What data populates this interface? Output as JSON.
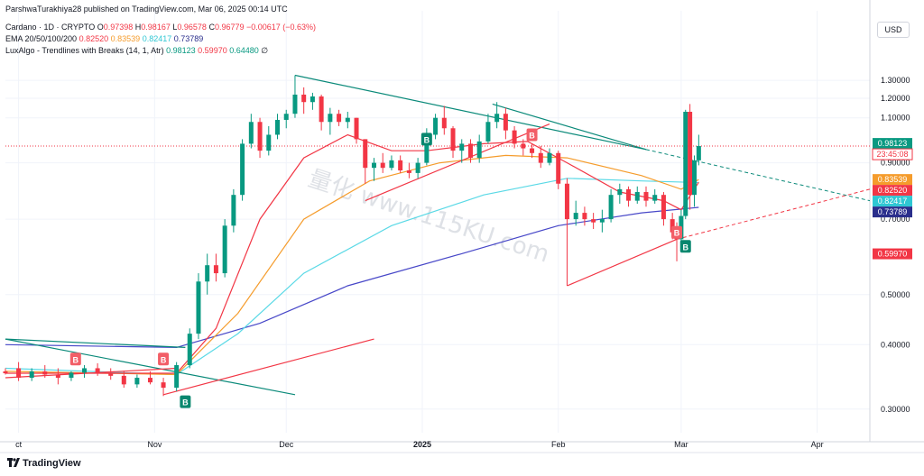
{
  "header": {
    "publish_line": "ParshwaTurakhiya28 published on TradingView.com, Mar 06, 2025 00:14 UTC",
    "symbol": "Cardano · 1D · CRYPTO",
    "o_label": "O",
    "o_val": "0.97398",
    "h_label": "H",
    "h_val": "0.98167",
    "l_label": "L",
    "l_val": "0.96578",
    "c_label": "C",
    "c_val": "0.96779",
    "change": "−0.00617 (−0.63%)",
    "ema_label": "EMA 20/50/100/200",
    "ema20": "0.82520",
    "ema50": "0.83539",
    "ema100": "0.82417",
    "ema200": "0.73789",
    "lux_label": "LuxAlgo - Trendlines with Breaks (14, 1, Atr)",
    "lux1": "0.98123",
    "lux2": "0.59970",
    "lux3": "0.64480",
    "lux_end": "∅"
  },
  "currency_button": "USD",
  "watermark": "量化  www.115KU.com",
  "branding": "TradingView",
  "colors": {
    "up": "#089981",
    "down": "#f23645",
    "ema20": "#f23645",
    "ema50": "#f59c2c",
    "ema100": "#5ad9e6",
    "ema200": "#4747c8",
    "trend_down": "#0b8a7a",
    "trend_up": "#f23645"
  },
  "chart_data": {
    "type": "candlestick",
    "symbol": "Cardano · 1D · CRYPTO",
    "y_ticks": [
      "1.30000",
      "1.20000",
      "1.10000",
      "0.90000",
      "0.70000",
      "0.50000",
      "0.40000",
      "0.30000"
    ],
    "y_tick_values": [
      1.3,
      1.2,
      1.1,
      0.9,
      0.7,
      0.5,
      0.4,
      0.3
    ],
    "y_scale": "log",
    "ylim": [
      0.27,
      1.45
    ],
    "x_ticks": [
      "ct",
      "Nov",
      "Dec",
      "2025",
      "Feb",
      "Mar",
      "Apr"
    ],
    "x_range": [
      "2024-09-28",
      "2025-04-13"
    ],
    "x_tick_dates": [
      "2024-10-01",
      "2024-11-01",
      "2024-12-01",
      "2025-01-01",
      "2025-02-01",
      "2025-03-01",
      "2025-04-01"
    ],
    "price_labels": [
      {
        "text": "0.98123",
        "value": 0.98123,
        "color": "#089981"
      },
      {
        "text": "23:45:08",
        "value": 0.935,
        "color": "#f23645",
        "style": "outline"
      },
      {
        "text": "0.83539",
        "value": 0.83539,
        "color": "#f59c2c"
      },
      {
        "text": "0.82520",
        "value": 0.8252,
        "color": "#f23645"
      },
      {
        "text": "0.82417",
        "value": 0.82417,
        "color": "#2fc7d3"
      },
      {
        "text": "0.73789",
        "value": 0.73789,
        "color": "#2a2e8c"
      },
      {
        "text": "0.59970",
        "value": 0.5997,
        "color": "#f23645"
      }
    ],
    "markers": [
      {
        "date": "2024-11-08",
        "price": 0.31,
        "label": "B",
        "type": "buy"
      },
      {
        "date": "2024-11-03",
        "price": 0.375,
        "label": "B",
        "type": "sell"
      },
      {
        "date": "2024-10-14",
        "price": 0.375,
        "label": "B",
        "type": "sell"
      },
      {
        "date": "2025-01-02",
        "price": 1.0,
        "label": "B",
        "type": "buy"
      },
      {
        "date": "2025-01-26",
        "price": 1.02,
        "label": "B",
        "type": "sell"
      },
      {
        "date": "2025-02-28",
        "price": 0.66,
        "label": "B",
        "type": "sell"
      },
      {
        "date": "2025-03-02",
        "price": 0.62,
        "label": "B",
        "type": "buy"
      }
    ],
    "candles": [
      {
        "d": "2024-09-28",
        "o": 0.355,
        "h": 0.36,
        "l": 0.35,
        "c": 0.352
      },
      {
        "d": "2024-10-01",
        "o": 0.36,
        "h": 0.37,
        "l": 0.34,
        "c": 0.345
      },
      {
        "d": "2024-10-04",
        "o": 0.345,
        "h": 0.36,
        "l": 0.34,
        "c": 0.355
      },
      {
        "d": "2024-10-07",
        "o": 0.355,
        "h": 0.365,
        "l": 0.345,
        "c": 0.35
      },
      {
        "d": "2024-10-10",
        "o": 0.35,
        "h": 0.36,
        "l": 0.335,
        "c": 0.345
      },
      {
        "d": "2024-10-13",
        "o": 0.345,
        "h": 0.355,
        "l": 0.34,
        "c": 0.353
      },
      {
        "d": "2024-10-16",
        "o": 0.353,
        "h": 0.365,
        "l": 0.345,
        "c": 0.36
      },
      {
        "d": "2024-10-19",
        "o": 0.36,
        "h": 0.368,
        "l": 0.348,
        "c": 0.352
      },
      {
        "d": "2024-10-22",
        "o": 0.352,
        "h": 0.36,
        "l": 0.342,
        "c": 0.348
      },
      {
        "d": "2024-10-25",
        "o": 0.348,
        "h": 0.356,
        "l": 0.33,
        "c": 0.335
      },
      {
        "d": "2024-10-28",
        "o": 0.335,
        "h": 0.35,
        "l": 0.33,
        "c": 0.345
      },
      {
        "d": "2024-10-31",
        "o": 0.345,
        "h": 0.355,
        "l": 0.335,
        "c": 0.338
      },
      {
        "d": "2024-11-03",
        "o": 0.338,
        "h": 0.345,
        "l": 0.318,
        "c": 0.33
      },
      {
        "d": "2024-11-06",
        "o": 0.33,
        "h": 0.37,
        "l": 0.325,
        "c": 0.365
      },
      {
        "d": "2024-11-09",
        "o": 0.365,
        "h": 0.43,
        "l": 0.36,
        "c": 0.42
      },
      {
        "d": "2024-11-11",
        "o": 0.42,
        "h": 0.55,
        "l": 0.41,
        "c": 0.53
      },
      {
        "d": "2024-11-13",
        "o": 0.53,
        "h": 0.6,
        "l": 0.5,
        "c": 0.57
      },
      {
        "d": "2024-11-15",
        "o": 0.57,
        "h": 0.6,
        "l": 0.53,
        "c": 0.55
      },
      {
        "d": "2024-11-17",
        "o": 0.55,
        "h": 0.7,
        "l": 0.54,
        "c": 0.68
      },
      {
        "d": "2024-11-19",
        "o": 0.68,
        "h": 0.8,
        "l": 0.66,
        "c": 0.78
      },
      {
        "d": "2024-11-21",
        "o": 0.78,
        "h": 1.0,
        "l": 0.76,
        "c": 0.98
      },
      {
        "d": "2024-11-23",
        "o": 0.98,
        "h": 1.12,
        "l": 0.96,
        "c": 1.08
      },
      {
        "d": "2024-11-25",
        "o": 1.08,
        "h": 1.1,
        "l": 0.92,
        "c": 0.95
      },
      {
        "d": "2024-11-27",
        "o": 0.95,
        "h": 1.06,
        "l": 0.93,
        "c": 1.02
      },
      {
        "d": "2024-11-29",
        "o": 1.02,
        "h": 1.12,
        "l": 1.0,
        "c": 1.09
      },
      {
        "d": "2024-12-01",
        "o": 1.09,
        "h": 1.14,
        "l": 1.05,
        "c": 1.12
      },
      {
        "d": "2024-12-03",
        "o": 1.12,
        "h": 1.33,
        "l": 1.1,
        "c": 1.22
      },
      {
        "d": "2024-12-05",
        "o": 1.22,
        "h": 1.26,
        "l": 1.12,
        "c": 1.18
      },
      {
        "d": "2024-12-07",
        "o": 1.18,
        "h": 1.23,
        "l": 1.14,
        "c": 1.21
      },
      {
        "d": "2024-12-09",
        "o": 1.21,
        "h": 1.22,
        "l": 1.04,
        "c": 1.08
      },
      {
        "d": "2024-12-11",
        "o": 1.08,
        "h": 1.15,
        "l": 1.02,
        "c": 1.12
      },
      {
        "d": "2024-12-13",
        "o": 1.12,
        "h": 1.14,
        "l": 1.06,
        "c": 1.08
      },
      {
        "d": "2024-12-15",
        "o": 1.08,
        "h": 1.13,
        "l": 1.05,
        "c": 1.1
      },
      {
        "d": "2024-12-17",
        "o": 1.1,
        "h": 1.1,
        "l": 0.98,
        "c": 1.0
      },
      {
        "d": "2024-12-19",
        "o": 1.0,
        "h": 1.0,
        "l": 0.82,
        "c": 0.88
      },
      {
        "d": "2024-12-21",
        "o": 0.88,
        "h": 0.92,
        "l": 0.83,
        "c": 0.9
      },
      {
        "d": "2024-12-23",
        "o": 0.9,
        "h": 0.94,
        "l": 0.86,
        "c": 0.88
      },
      {
        "d": "2024-12-25",
        "o": 0.88,
        "h": 0.93,
        "l": 0.87,
        "c": 0.91
      },
      {
        "d": "2024-12-27",
        "o": 0.91,
        "h": 0.93,
        "l": 0.86,
        "c": 0.87
      },
      {
        "d": "2024-12-29",
        "o": 0.87,
        "h": 0.9,
        "l": 0.84,
        "c": 0.86
      },
      {
        "d": "2024-12-31",
        "o": 0.86,
        "h": 0.92,
        "l": 0.84,
        "c": 0.9
      },
      {
        "d": "2025-01-02",
        "o": 0.9,
        "h": 1.05,
        "l": 0.89,
        "c": 1.02
      },
      {
        "d": "2025-01-04",
        "o": 1.02,
        "h": 1.12,
        "l": 1.0,
        "c": 1.1
      },
      {
        "d": "2025-01-06",
        "o": 1.1,
        "h": 1.16,
        "l": 1.02,
        "c": 1.05
      },
      {
        "d": "2025-01-08",
        "o": 1.05,
        "h": 1.06,
        "l": 0.92,
        "c": 0.95
      },
      {
        "d": "2025-01-10",
        "o": 0.95,
        "h": 1.0,
        "l": 0.9,
        "c": 0.98
      },
      {
        "d": "2025-01-12",
        "o": 0.98,
        "h": 1.0,
        "l": 0.9,
        "c": 0.92
      },
      {
        "d": "2025-01-14",
        "o": 0.92,
        "h": 1.02,
        "l": 0.9,
        "c": 0.99
      },
      {
        "d": "2025-01-16",
        "o": 0.99,
        "h": 1.12,
        "l": 0.98,
        "c": 1.08
      },
      {
        "d": "2025-01-18",
        "o": 1.08,
        "h": 1.18,
        "l": 1.05,
        "c": 1.12
      },
      {
        "d": "2025-01-20",
        "o": 1.12,
        "h": 1.15,
        "l": 1.0,
        "c": 1.04
      },
      {
        "d": "2025-01-22",
        "o": 1.04,
        "h": 1.06,
        "l": 0.96,
        "c": 0.98
      },
      {
        "d": "2025-01-24",
        "o": 0.98,
        "h": 1.0,
        "l": 0.93,
        "c": 0.96
      },
      {
        "d": "2025-01-26",
        "o": 0.96,
        "h": 0.98,
        "l": 0.92,
        "c": 0.94
      },
      {
        "d": "2025-01-28",
        "o": 0.94,
        "h": 0.97,
        "l": 0.88,
        "c": 0.9
      },
      {
        "d": "2025-01-30",
        "o": 0.9,
        "h": 0.96,
        "l": 0.89,
        "c": 0.94
      },
      {
        "d": "2025-02-01",
        "o": 0.94,
        "h": 0.95,
        "l": 0.8,
        "c": 0.82
      },
      {
        "d": "2025-02-03",
        "o": 0.82,
        "h": 0.84,
        "l": 0.52,
        "c": 0.7
      },
      {
        "d": "2025-02-05",
        "o": 0.7,
        "h": 0.76,
        "l": 0.68,
        "c": 0.72
      },
      {
        "d": "2025-02-07",
        "o": 0.72,
        "h": 0.74,
        "l": 0.68,
        "c": 0.7
      },
      {
        "d": "2025-02-09",
        "o": 0.7,
        "h": 0.72,
        "l": 0.67,
        "c": 0.69
      },
      {
        "d": "2025-02-11",
        "o": 0.69,
        "h": 0.73,
        "l": 0.66,
        "c": 0.7
      },
      {
        "d": "2025-02-13",
        "o": 0.7,
        "h": 0.8,
        "l": 0.69,
        "c": 0.78
      },
      {
        "d": "2025-02-15",
        "o": 0.78,
        "h": 0.82,
        "l": 0.75,
        "c": 0.8
      },
      {
        "d": "2025-02-17",
        "o": 0.8,
        "h": 0.81,
        "l": 0.74,
        "c": 0.76
      },
      {
        "d": "2025-02-19",
        "o": 0.76,
        "h": 0.81,
        "l": 0.75,
        "c": 0.79
      },
      {
        "d": "2025-02-21",
        "o": 0.79,
        "h": 0.81,
        "l": 0.74,
        "c": 0.76
      },
      {
        "d": "2025-02-23",
        "o": 0.76,
        "h": 0.8,
        "l": 0.75,
        "c": 0.78
      },
      {
        "d": "2025-02-25",
        "o": 0.78,
        "h": 0.79,
        "l": 0.68,
        "c": 0.7
      },
      {
        "d": "2025-02-27",
        "o": 0.7,
        "h": 0.72,
        "l": 0.64,
        "c": 0.66
      },
      {
        "d": "2025-02-28",
        "o": 0.66,
        "h": 0.69,
        "l": 0.58,
        "c": 0.64
      },
      {
        "d": "2025-03-01",
        "o": 0.64,
        "h": 0.73,
        "l": 0.63,
        "c": 0.71
      },
      {
        "d": "2025-03-02",
        "o": 0.71,
        "h": 1.14,
        "l": 0.7,
        "c": 1.13
      },
      {
        "d": "2025-03-03",
        "o": 1.13,
        "h": 1.17,
        "l": 0.73,
        "c": 0.78
      },
      {
        "d": "2025-03-04",
        "o": 0.78,
        "h": 0.93,
        "l": 0.74,
        "c": 0.91
      },
      {
        "d": "2025-03-05",
        "o": 0.91,
        "h": 1.02,
        "l": 0.89,
        "c": 0.97
      }
    ],
    "ema20": [
      [
        "2024-09-28",
        0.352
      ],
      [
        "2024-11-06",
        0.352
      ],
      [
        "2024-11-15",
        0.43
      ],
      [
        "2024-11-25",
        0.7
      ],
      [
        "2024-12-05",
        0.92
      ],
      [
        "2024-12-15",
        1.02
      ],
      [
        "2024-12-25",
        0.95
      ],
      [
        "2025-01-02",
        0.95
      ],
      [
        "2025-01-15",
        0.98
      ],
      [
        "2025-01-25",
        0.99
      ],
      [
        "2025-02-03",
        0.9
      ],
      [
        "2025-02-15",
        0.79
      ],
      [
        "2025-02-25",
        0.76
      ],
      [
        "2025-03-01",
        0.73
      ],
      [
        "2025-03-05",
        0.825
      ]
    ],
    "ema50": [
      [
        "2024-09-28",
        0.355
      ],
      [
        "2024-11-06",
        0.35
      ],
      [
        "2024-11-20",
        0.46
      ],
      [
        "2024-12-05",
        0.7
      ],
      [
        "2024-12-20",
        0.83
      ],
      [
        "2025-01-05",
        0.9
      ],
      [
        "2025-01-20",
        0.93
      ],
      [
        "2025-02-03",
        0.92
      ],
      [
        "2025-02-20",
        0.85
      ],
      [
        "2025-03-01",
        0.8
      ],
      [
        "2025-03-05",
        0.835
      ]
    ],
    "ema100": [
      [
        "2024-09-28",
        0.36
      ],
      [
        "2024-11-06",
        0.35
      ],
      [
        "2024-11-20",
        0.42
      ],
      [
        "2024-12-05",
        0.55
      ],
      [
        "2024-12-25",
        0.68
      ],
      [
        "2025-01-15",
        0.78
      ],
      [
        "2025-02-03",
        0.84
      ],
      [
        "2025-02-20",
        0.83
      ],
      [
        "2025-03-05",
        0.824
      ]
    ],
    "ema200": [
      [
        "2024-09-28",
        0.4
      ],
      [
        "2024-11-06",
        0.395
      ],
      [
        "2024-11-25",
        0.44
      ],
      [
        "2024-12-15",
        0.52
      ],
      [
        "2025-01-10",
        0.6
      ],
      [
        "2025-02-01",
        0.68
      ],
      [
        "2025-02-20",
        0.72
      ],
      [
        "2025-03-05",
        0.738
      ]
    ],
    "trendlines": [
      {
        "color": "#0b8a7a",
        "points": [
          [
            "2024-12-03",
            1.33
          ],
          [
            "2025-02-21",
            0.955
          ]
        ],
        "dashed_to": [
          "2025-04-13",
          0.76
        ]
      },
      {
        "color": "#0b8a7a",
        "points": [
          [
            "2025-01-17",
            1.17
          ],
          [
            "2025-02-21",
            0.955
          ]
        ]
      },
      {
        "color": "#0b8a7a",
        "points": [
          [
            "2024-09-28",
            0.41
          ],
          [
            "2024-11-08",
            0.395
          ]
        ]
      },
      {
        "color": "#0b8a7a",
        "points": [
          [
            "2024-09-28",
            0.41
          ],
          [
            "2024-12-03",
            0.32
          ]
        ]
      },
      {
        "color": "#f23645",
        "points": [
          [
            "2024-11-03",
            0.32
          ],
          [
            "2024-12-21",
            0.41
          ]
        ]
      },
      {
        "color": "#f23645",
        "points": [
          [
            "2024-09-28",
            0.345
          ],
          [
            "2024-11-06",
            0.36
          ]
        ]
      },
      {
        "color": "#f23645",
        "points": [
          [
            "2024-12-19",
            0.76
          ],
          [
            "2025-01-30",
            1.07
          ]
        ]
      },
      {
        "color": "#f23645",
        "points": [
          [
            "2025-02-03",
            0.52
          ],
          [
            "2025-02-28",
            0.64
          ]
        ],
        "dashed_to": [
          "2025-04-13",
          0.8
        ]
      }
    ]
  }
}
